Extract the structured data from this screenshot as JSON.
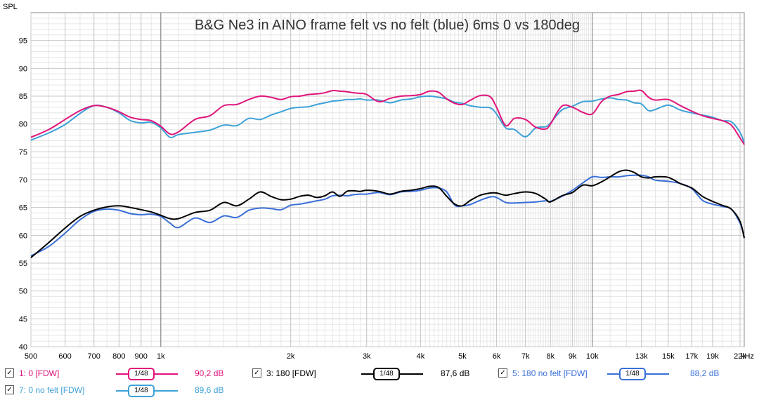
{
  "chart_data": {
    "type": "line",
    "title": "B&G Ne3 in AINO frame felt vs no felt (blue) 6ms 0 vs 180deg",
    "ylabel": "SPL",
    "xlabel": "",
    "x_unit_label": "kHz",
    "x_scale": "log",
    "xlim": [
      500,
      22500
    ],
    "ylim": [
      40,
      100
    ],
    "x_ticks": [
      {
        "v": 500,
        "label": "500"
      },
      {
        "v": 600,
        "label": "600"
      },
      {
        "v": 700,
        "label": "700"
      },
      {
        "v": 800,
        "label": "800"
      },
      {
        "v": 900,
        "label": "900"
      },
      {
        "v": 1000,
        "label": "1k"
      },
      {
        "v": 2000,
        "label": "2k"
      },
      {
        "v": 3000,
        "label": "3k"
      },
      {
        "v": 4000,
        "label": "4k"
      },
      {
        "v": 5000,
        "label": "5k"
      },
      {
        "v": 6000,
        "label": "6k"
      },
      {
        "v": 7000,
        "label": "7k"
      },
      {
        "v": 8000,
        "label": "8k"
      },
      {
        "v": 9000,
        "label": "9k"
      },
      {
        "v": 10000,
        "label": "10k"
      },
      {
        "v": 13000,
        "label": "13k"
      },
      {
        "v": 15000,
        "label": "15k"
      },
      {
        "v": 17000,
        "label": "17k"
      },
      {
        "v": 19000,
        "label": "19k"
      },
      {
        "v": 22000,
        "label": "22k"
      }
    ],
    "y_ticks": [
      40,
      45,
      50,
      55,
      60,
      65,
      70,
      75,
      80,
      85,
      90,
      95
    ],
    "grid": true,
    "series": [
      {
        "name": "1: 0 [FDW]",
        "color": "#e0147a",
        "x": [
          500,
          550,
          600,
          650,
          700,
          750,
          800,
          850,
          900,
          950,
          1000,
          1050,
          1100,
          1200,
          1300,
          1400,
          1500,
          1600,
          1700,
          1800,
          1900,
          2000,
          2100,
          2200,
          2300,
          2400,
          2500,
          2600,
          2700,
          2800,
          2900,
          3000,
          3200,
          3400,
          3600,
          3800,
          4000,
          4200,
          4400,
          4600,
          4800,
          5000,
          5200,
          5500,
          5800,
          6000,
          6300,
          6600,
          7000,
          7400,
          7800,
          8000,
          8500,
          9000,
          9500,
          10000,
          10500,
          11000,
          11500,
          12000,
          12500,
          13000,
          13500,
          14000,
          15000,
          16000,
          17000,
          18000,
          19000,
          20000,
          21000,
          22000,
          22500
        ],
        "y": [
          77.6,
          79,
          80.8,
          82.4,
          83.3,
          83,
          82.2,
          81.2,
          80.8,
          80.6,
          79.6,
          78.2,
          78.6,
          80.8,
          81.5,
          83.3,
          83.5,
          84.4,
          85,
          84.8,
          84.4,
          84.9,
          85,
          85.3,
          85.4,
          85.6,
          86,
          85.9,
          85.8,
          85.6,
          85.5,
          85.3,
          84,
          84.6,
          85,
          85.1,
          85.3,
          85.9,
          85.7,
          84.5,
          83.7,
          83.5,
          84.2,
          85.1,
          84.9,
          83,
          79.7,
          81,
          80.8,
          79.4,
          79.1,
          80,
          83.2,
          83,
          82.1,
          81.8,
          84,
          85,
          85.3,
          85.8,
          85.9,
          86,
          84.8,
          84.3,
          84.4,
          83.3,
          82.3,
          81.5,
          81,
          80.6,
          79.8,
          77.5,
          76.3
        ]
      },
      {
        "name": "3: 180 [FDW]",
        "color": "#000000",
        "x": [
          500,
          550,
          600,
          650,
          700,
          750,
          800,
          850,
          900,
          950,
          1000,
          1050,
          1100,
          1200,
          1300,
          1400,
          1500,
          1600,
          1700,
          1800,
          1900,
          2000,
          2100,
          2200,
          2300,
          2400,
          2500,
          2600,
          2700,
          2800,
          2900,
          3000,
          3200,
          3400,
          3600,
          3800,
          4000,
          4200,
          4400,
          4600,
          4800,
          5000,
          5200,
          5500,
          5800,
          6000,
          6300,
          6600,
          7000,
          7400,
          7800,
          8000,
          8500,
          9000,
          9500,
          10000,
          10500,
          11000,
          11500,
          12000,
          12500,
          13000,
          13500,
          14000,
          15000,
          16000,
          17000,
          18000,
          19000,
          20000,
          21000,
          22000,
          22500
        ],
        "y": [
          56,
          58.7,
          61.3,
          63.4,
          64.5,
          65.1,
          65.3,
          65,
          64.6,
          64.2,
          63.6,
          63,
          63,
          64.1,
          64.5,
          65.9,
          65.3,
          66.5,
          67.8,
          67,
          66.4,
          66.5,
          67,
          67.2,
          66.8,
          67.1,
          67.8,
          67,
          67.9,
          68,
          67.9,
          68.1,
          67.9,
          67.4,
          67.9,
          68.1,
          68.4,
          68.8,
          68.6,
          67,
          65.6,
          65.3,
          66.2,
          67.2,
          67.6,
          67.6,
          67.2,
          67.5,
          67.8,
          67.5,
          66.5,
          66,
          67.1,
          67.7,
          69,
          68.9,
          69.6,
          70.5,
          71.4,
          71.7,
          71.3,
          70.5,
          70.3,
          70.5,
          70.4,
          69.3,
          68.5,
          67,
          66.1,
          65.4,
          64.7,
          62.5,
          59.5
        ]
      },
      {
        "name": "5: 180 no felt [FDW]",
        "color": "#3a6fd8",
        "x": [
          500,
          550,
          600,
          650,
          700,
          750,
          800,
          850,
          900,
          950,
          1000,
          1050,
          1100,
          1200,
          1300,
          1400,
          1500,
          1600,
          1700,
          1800,
          1900,
          2000,
          2100,
          2200,
          2300,
          2400,
          2500,
          2600,
          2700,
          2800,
          2900,
          3000,
          3200,
          3400,
          3600,
          3800,
          4000,
          4200,
          4400,
          4600,
          4800,
          5000,
          5200,
          5500,
          5800,
          6000,
          6300,
          6600,
          7000,
          7400,
          7800,
          8000,
          8500,
          9000,
          9500,
          10000,
          10500,
          11000,
          11500,
          12000,
          12500,
          13000,
          13500,
          14000,
          15000,
          16000,
          17000,
          18000,
          19000,
          20000,
          21000,
          22000,
          22500
        ],
        "y": [
          56.3,
          58,
          60.4,
          62.8,
          64.3,
          64.7,
          64.5,
          63.9,
          63.7,
          63.8,
          63.4,
          62.2,
          61.4,
          63.1,
          62.3,
          63.5,
          63.2,
          64.5,
          64.9,
          64.8,
          64.6,
          65.4,
          65.6,
          65.9,
          66.2,
          66.5,
          67.1,
          67.2,
          67.1,
          67.3,
          67.4,
          67.4,
          67.7,
          67.3,
          67.8,
          67.9,
          68.1,
          68.5,
          68.5,
          67.8,
          65.4,
          65.3,
          65.5,
          66.3,
          66.9,
          66.8,
          65.9,
          65.8,
          65.9,
          66,
          66.2,
          66.1,
          67,
          68.1,
          69.4,
          70.5,
          70.4,
          70.5,
          70.5,
          70.7,
          70.8,
          70.8,
          70.5,
          69.9,
          69.7,
          69.3,
          68.4,
          66.3,
          65.6,
          65.2,
          64.7,
          62.2,
          59.7
        ]
      },
      {
        "name": "7: 0 no felt [FDW]",
        "color": "#3fa2d8",
        "x": [
          500,
          550,
          600,
          650,
          700,
          750,
          800,
          850,
          900,
          950,
          1000,
          1050,
          1100,
          1200,
          1300,
          1400,
          1500,
          1600,
          1700,
          1800,
          1900,
          2000,
          2100,
          2200,
          2300,
          2400,
          2500,
          2600,
          2700,
          2800,
          2900,
          3000,
          3200,
          3400,
          3600,
          3800,
          4000,
          4200,
          4400,
          4600,
          4800,
          5000,
          5200,
          5500,
          5800,
          6000,
          6300,
          6600,
          7000,
          7400,
          7800,
          8000,
          8500,
          9000,
          9500,
          10000,
          10500,
          11000,
          11500,
          12000,
          12500,
          13000,
          13500,
          14000,
          15000,
          16000,
          17000,
          18000,
          19000,
          20000,
          21000,
          22000,
          22500
        ],
        "y": [
          77.1,
          78.4,
          79.9,
          81.9,
          83.3,
          83,
          82,
          80.6,
          80.2,
          80.3,
          79.3,
          77.6,
          78.1,
          78.5,
          78.9,
          79.8,
          79.7,
          81,
          80.8,
          81.6,
          82.2,
          82.8,
          83,
          83.1,
          83.5,
          83.8,
          84.1,
          84.2,
          84.4,
          84.4,
          84.5,
          84.3,
          84.3,
          83.8,
          84.3,
          84.5,
          84.9,
          85,
          84.8,
          84.5,
          83.9,
          83.7,
          83.3,
          83,
          82.9,
          81.8,
          79.3,
          79,
          77.7,
          79.3,
          79.5,
          80.2,
          82.5,
          83.2,
          84,
          84.1,
          84.5,
          84.7,
          84.4,
          84.3,
          83.8,
          83.6,
          82.4,
          82.6,
          83.4,
          82.5,
          82,
          81.6,
          81.2,
          80.6,
          80.4,
          78.5,
          76.6
        ]
      }
    ]
  },
  "legend": [
    {
      "label": "1: 0 [FDW]",
      "smoothing": "1/48",
      "value": "90,2 dB",
      "color": "#e0147a",
      "check": "✓"
    },
    {
      "label": "3: 180 [FDW]",
      "smoothing": "1/48",
      "value": "87,6 dB",
      "color": "#000000",
      "check": "✓"
    },
    {
      "label": "5: 180 no felt [FDW]",
      "smoothing": "1/48",
      "value": "88,2 dB",
      "color": "#3a6fd8",
      "check": "✓"
    },
    {
      "label": "7: 0 no felt [FDW]",
      "smoothing": "1/48",
      "value": "89,6 dB",
      "color": "#3fa2d8",
      "check": "✓"
    }
  ]
}
